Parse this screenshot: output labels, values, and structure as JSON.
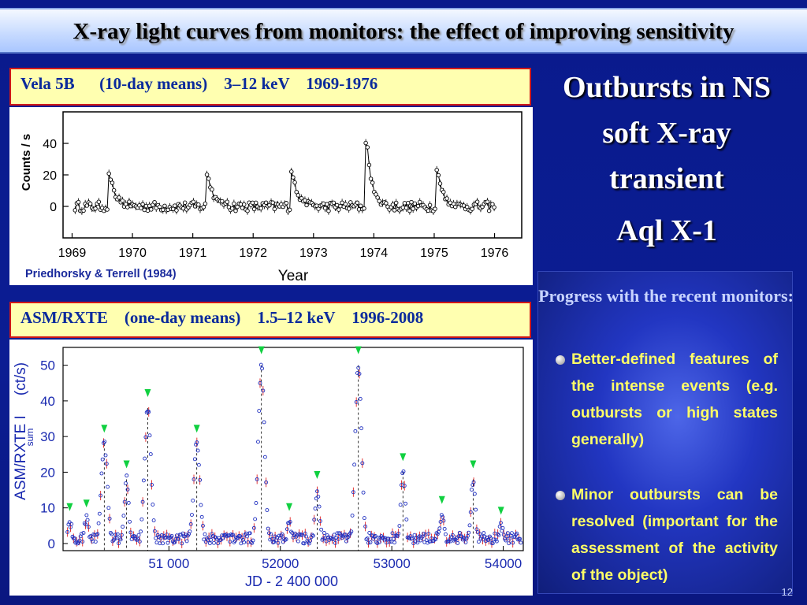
{
  "slide": {
    "title": "X-ray light curves from monitors: the effect of improving sensitivity",
    "page_number": "12"
  },
  "right": {
    "heading": "Outbursts in NS soft X-ray transient",
    "source": "Aql X-1",
    "progress_title": "Progress with the recent monitors:",
    "bullets": [
      "Better-defined features of the intense events (e.g. outbursts or high states generally)",
      "Minor outbursts can be resolved (important for the assessment of the activity of the object)"
    ]
  },
  "chart_data": [
    {
      "type": "line",
      "label": "Vela 5B      (10-day means)    3–12 keV    1969-1976",
      "xlabel": "Year",
      "ylabel": "Counts / s",
      "credit": "Priedhorsky & Terrell (1984)",
      "xlim": [
        1968.85,
        1976.45
      ],
      "ylim": [
        -20,
        60
      ],
      "x_ticks": [
        1969,
        1970,
        1971,
        1972,
        1973,
        1974,
        1975,
        1976
      ],
      "y_ticks": [
        0,
        20,
        40
      ],
      "grid": false,
      "outbursts": [
        {
          "x": 1969.62,
          "y": 22
        },
        {
          "x": 1971.25,
          "y": 21
        },
        {
          "x": 1972.65,
          "y": 23
        },
        {
          "x": 1973.88,
          "y": 42
        },
        {
          "x": 1975.05,
          "y": 25
        }
      ]
    },
    {
      "type": "line",
      "label": "ASM/RXTE    (one-day means)    1.5–12 keV    1996-2008",
      "xlabel": "JD - 2 400 000",
      "ylabel": "ASM/RXTE  I",
      "ylabel_sub": "sum",
      "ylabel_unit": "(ct/s)",
      "xlim": [
        50050,
        54180
      ],
      "ylim": [
        -2,
        55
      ],
      "x_ticks": [
        51000,
        52000,
        53000,
        54000
      ],
      "x_tick_labels": [
        "51 000",
        "52000",
        "53000",
        "54000"
      ],
      "y_ticks": [
        0,
        10,
        20,
        30,
        40,
        50
      ],
      "grid": false,
      "outbursts": [
        {
          "x": 50110,
          "y": 6
        },
        {
          "x": 50260,
          "y": 7
        },
        {
          "x": 50420,
          "y": 28
        },
        {
          "x": 50620,
          "y": 18
        },
        {
          "x": 50810,
          "y": 38
        },
        {
          "x": 51250,
          "y": 28
        },
        {
          "x": 51830,
          "y": 50
        },
        {
          "x": 52080,
          "y": 6
        },
        {
          "x": 52330,
          "y": 15
        },
        {
          "x": 52700,
          "y": 50
        },
        {
          "x": 53100,
          "y": 20
        },
        {
          "x": 53450,
          "y": 8
        },
        {
          "x": 53730,
          "y": 18
        },
        {
          "x": 53980,
          "y": 5
        }
      ]
    }
  ]
}
